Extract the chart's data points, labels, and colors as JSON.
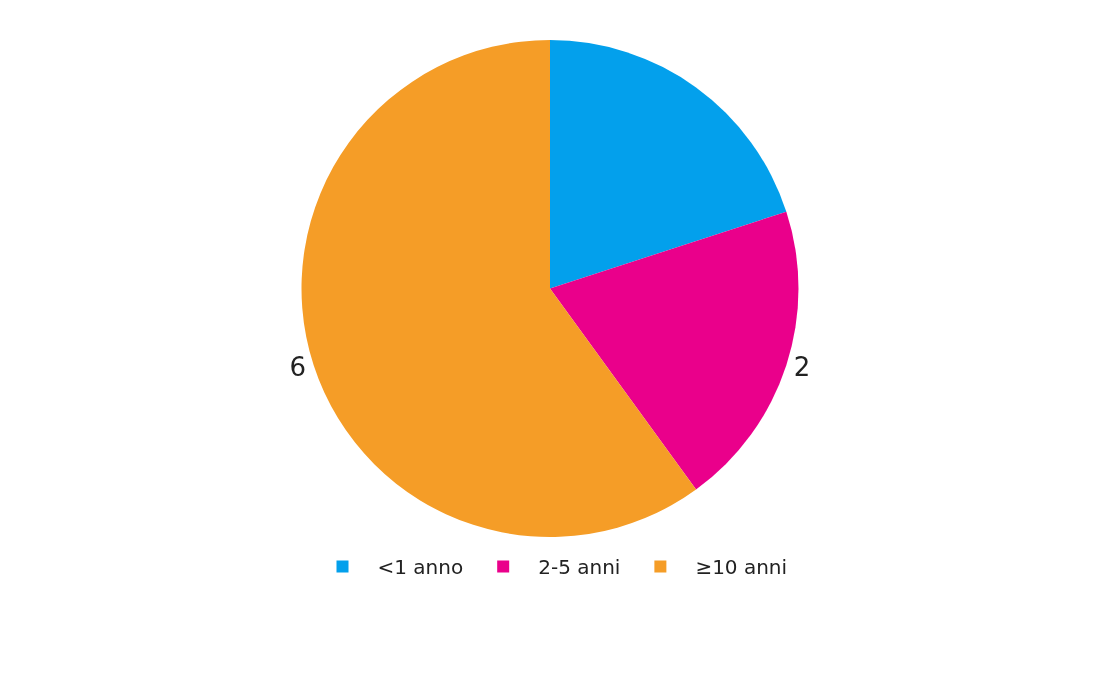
{
  "chart_data": {
    "type": "pie",
    "categories": [
      "<1 anno",
      "2-5 anni",
      "≥10 anni"
    ],
    "values": [
      2,
      2,
      6
    ],
    "colors": [
      "#03a0ec",
      "#ea008b",
      "#f59d27"
    ],
    "value_labels": [
      null,
      "2",
      "6"
    ],
    "legend": "bottom"
  }
}
